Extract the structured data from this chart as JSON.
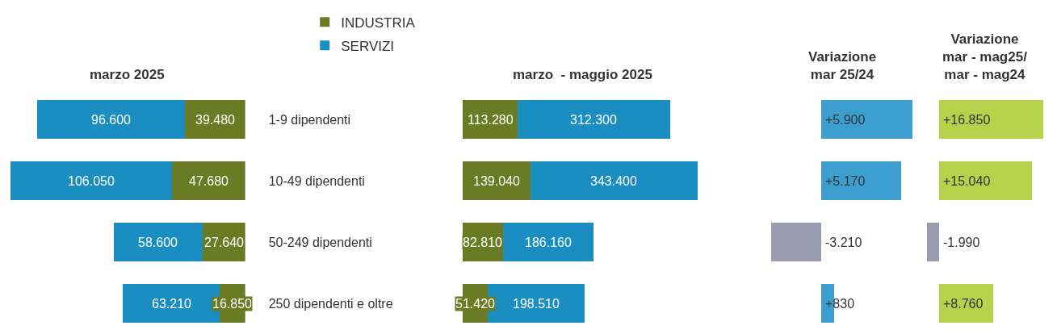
{
  "chart_data": [
    {
      "type": "bar",
      "title": "marzo 2025",
      "orientation": "horizontal",
      "stacked": true,
      "categories": [
        "1-9 dipendenti",
        "10-49 dipendenti",
        "50-249 dipendenti",
        "250 dipendenti e oltre"
      ],
      "series": [
        {
          "name": "INDUSTRIA",
          "color": "#6b7b23",
          "values": [
            39480,
            47680,
            27640,
            16850
          ],
          "value_labels": [
            "39.480",
            "47.680",
            "27.640",
            "16.850"
          ]
        },
        {
          "name": "SERVIZI",
          "color": "#1a8dc1",
          "values": [
            96600,
            106050,
            58600,
            63210
          ],
          "value_labels": [
            "96.600",
            "106.050",
            "58.600",
            "63.210"
          ]
        }
      ],
      "xlim": [
        155000,
        0
      ],
      "tick_labels": "y",
      "legend": "top right"
    },
    {
      "type": "bar",
      "title": "marzo  - maggio 2025",
      "orientation": "horizontal",
      "stacked": true,
      "categories": [
        null,
        null,
        null,
        null
      ],
      "series": [
        {
          "color": "#6b7b23",
          "values": [
            113280,
            139040,
            82810,
            51420
          ],
          "value_labels": [
            "113.280",
            "139.040",
            "82.810",
            "51.420"
          ]
        },
        {
          "color": "#1a8dc1",
          "values": [
            312300,
            343400,
            186160,
            198510
          ],
          "value_labels": [
            "312.300",
            "343.400",
            "186.160",
            "198.510"
          ]
        }
      ],
      "tick_labels": false
    },
    {
      "type": "bar",
      "title": "Variazione\nmar 25/24",
      "orientation": "horizontal",
      "categories": [
        null,
        null,
        null,
        null
      ],
      "values": [
        5900,
        5170,
        -3210,
        830
      ],
      "value_labels": [
        "+5.900",
        "+5.170",
        "-3.210",
        "+830"
      ],
      "colors": [
        "#3c9fd0",
        "#3c9fd0",
        "#9c9cb0",
        "#3c9fd0"
      ],
      "tick_labels": false
    },
    {
      "type": "bar",
      "title": "Variazione\nmar - mag25/\nmar - mag24",
      "orientation": "horizontal",
      "categories": [
        null,
        null,
        null,
        null
      ],
      "values": [
        16850,
        15040,
        -1990,
        8760
      ],
      "value_labels": [
        "+16.850",
        "+15.040",
        "-1.990",
        "+8.760"
      ],
      "colors": [
        "#b5d24a",
        "#b5d24a",
        "#9c9cb0",
        "#b5d24a"
      ],
      "tick_labels": false
    }
  ]
}
